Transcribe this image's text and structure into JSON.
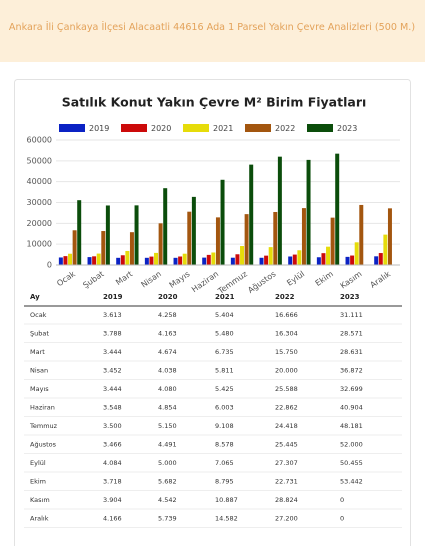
{
  "header": {
    "title": "Ankara İli Çankaya İlçesi Alacaatli 44616 Ada 1 Parsel Yakın Çevre Analizleri (500 M.)"
  },
  "chart_data": {
    "type": "bar",
    "title": "Satılık Konut Yakın Çevre M² Birim Fiyatları",
    "categories": [
      "Ocak",
      "Şubat",
      "Mart",
      "Nisan",
      "Mayıs",
      "Haziran",
      "Temmuz",
      "Ağustos",
      "Eylül",
      "Ekim",
      "Kasım",
      "Aralık"
    ],
    "series": [
      {
        "name": "2019",
        "color": "#0b22c4",
        "values": [
          3613,
          3788,
          3444,
          3452,
          3444,
          3548,
          3500,
          3466,
          4084,
          3718,
          3904,
          4166
        ]
      },
      {
        "name": "2020",
        "color": "#cc0a0a",
        "values": [
          4258,
          4163,
          4674,
          4038,
          4080,
          4854,
          5150,
          4491,
          5000,
          5682,
          4542,
          5739
        ]
      },
      {
        "name": "2021",
        "color": "#e6dc0a",
        "values": [
          5404,
          5480,
          6735,
          5811,
          5425,
          6003,
          9108,
          8578,
          7065,
          8795,
          10887,
          14582
        ]
      },
      {
        "name": "2022",
        "color": "#a3560f",
        "values": [
          16666,
          16304,
          15750,
          20000,
          25588,
          22862,
          24418,
          25445,
          27307,
          22731,
          28824,
          27200
        ]
      },
      {
        "name": "2023",
        "color": "#0b4d0b",
        "values": [
          31111,
          28571,
          28631,
          36872,
          32699,
          40904,
          48181,
          52000,
          50455,
          53442,
          0,
          0
        ]
      }
    ],
    "ylim": [
      0,
      60000
    ],
    "yticks": [
      0,
      10000,
      20000,
      30000,
      40000,
      50000,
      60000
    ],
    "grid": true,
    "legend": "top"
  },
  "table": {
    "columns": [
      "Ay",
      "2019",
      "2020",
      "2021",
      "2022",
      "2023"
    ],
    "rows": [
      [
        "Ocak",
        "3.613",
        "4.258",
        "5.404",
        "16.666",
        "31.111"
      ],
      [
        "Şubat",
        "3.788",
        "4.163",
        "5.480",
        "16.304",
        "28.571"
      ],
      [
        "Mart",
        "3.444",
        "4.674",
        "6.735",
        "15.750",
        "28.631"
      ],
      [
        "Nisan",
        "3.452",
        "4.038",
        "5.811",
        "20.000",
        "36.872"
      ],
      [
        "Mayıs",
        "3.444",
        "4.080",
        "5.425",
        "25.588",
        "32.699"
      ],
      [
        "Haziran",
        "3.548",
        "4.854",
        "6.003",
        "22.862",
        "40.904"
      ],
      [
        "Temmuz",
        "3.500",
        "5.150",
        "9.108",
        "24.418",
        "48.181"
      ],
      [
        "Ağustos",
        "3.466",
        "4.491",
        "8.578",
        "25.445",
        "52.000"
      ],
      [
        "Eylül",
        "4.084",
        "5.000",
        "7.065",
        "27.307",
        "50.455"
      ],
      [
        "Ekim",
        "3.718",
        "5.682",
        "8.795",
        "22.731",
        "53.442"
      ],
      [
        "Kasım",
        "3.904",
        "4.542",
        "10.887",
        "28.824",
        "0"
      ],
      [
        "Aralık",
        "4.166",
        "5.739",
        "14.582",
        "27.200",
        "0"
      ]
    ]
  }
}
